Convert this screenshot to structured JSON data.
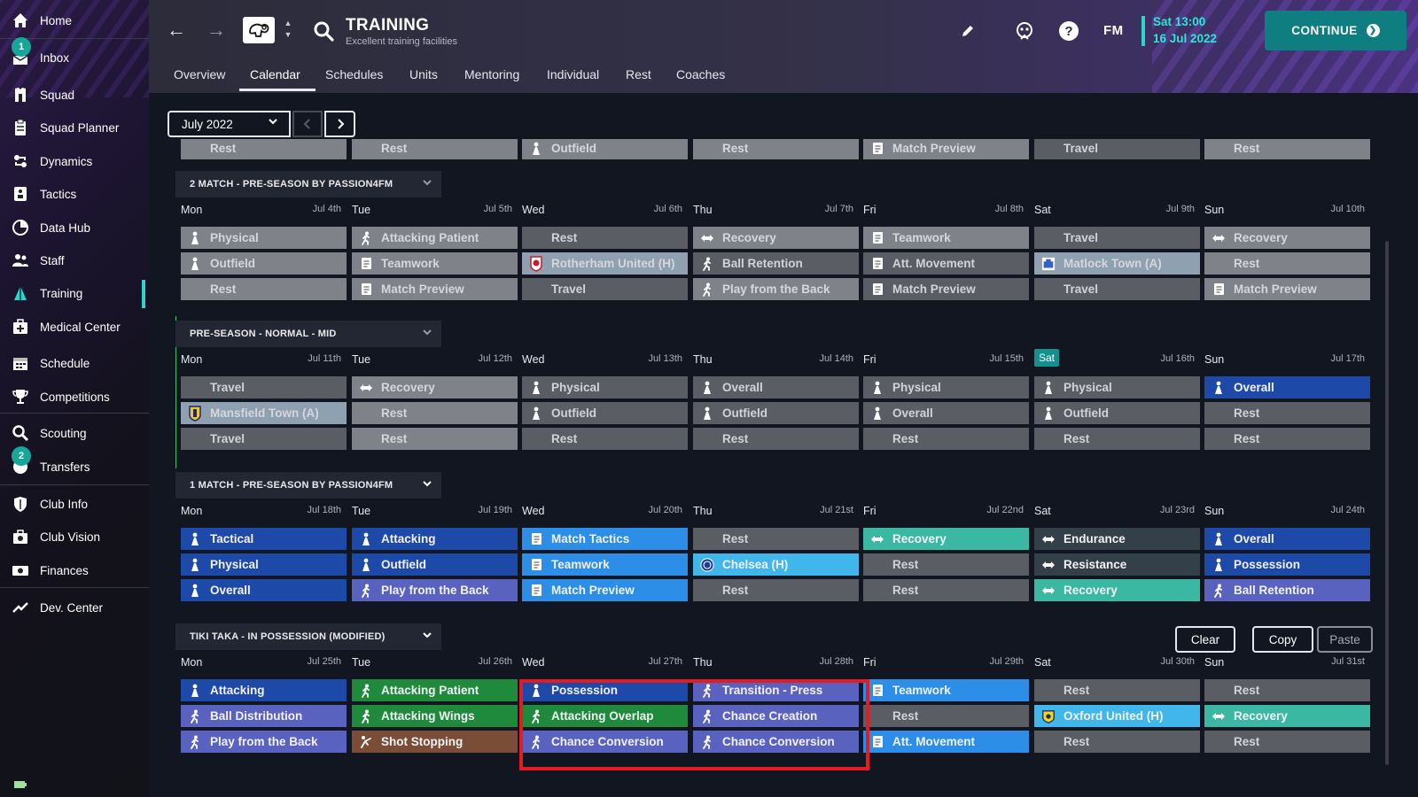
{
  "sidebar": {
    "items": [
      {
        "label": "Home",
        "icon": "home-icon"
      },
      {
        "label": "Inbox",
        "icon": "inbox-icon",
        "badge": "1"
      },
      {
        "label": "Squad",
        "icon": "squad-icon"
      },
      {
        "label": "Squad Planner",
        "icon": "clipboard-icon"
      },
      {
        "label": "Dynamics",
        "icon": "dynamics-icon"
      },
      {
        "label": "Tactics",
        "icon": "tactics-icon"
      },
      {
        "label": "Data Hub",
        "icon": "data-hub-icon"
      },
      {
        "label": "Staff",
        "icon": "staff-icon"
      },
      {
        "label": "Training",
        "icon": "training-icon",
        "active": true
      },
      {
        "label": "Medical Center",
        "icon": "medical-icon"
      },
      {
        "label": "Schedule",
        "icon": "calendar-icon"
      },
      {
        "label": "Competitions",
        "icon": "trophy-icon"
      },
      {
        "label": "Scouting",
        "icon": "scouting-icon"
      },
      {
        "label": "Transfers",
        "icon": "transfers-icon",
        "badge": "2"
      },
      {
        "label": "Club Info",
        "icon": "shield-icon"
      },
      {
        "label": "Club Vision",
        "icon": "club-vision-icon"
      },
      {
        "label": "Finances",
        "icon": "finances-icon"
      },
      {
        "label": "Dev. Center",
        "icon": "dev-center-icon"
      }
    ]
  },
  "header": {
    "title": "TRAINING",
    "subtitle": "Excellent training facilities",
    "fm_logo": "FM",
    "date_time": "Sat 13:00",
    "date_day": "16 Jul 2022",
    "continue_label": "CONTINUE",
    "tabs": [
      "Overview",
      "Calendar",
      "Schedules",
      "Units",
      "Mentoring",
      "Individual",
      "Rest",
      "Coaches"
    ],
    "active_tab": "Calendar"
  },
  "controls": {
    "month": "July 2022",
    "clear": "Clear",
    "copy": "Copy",
    "paste": "Paste"
  },
  "colors": {
    "grey": "#5b5d65",
    "lightgrey": "#80828a",
    "match": "#8fa0b0",
    "navy": "#1d49a8",
    "blue": "#2c8ee6",
    "lightblue": "#40b6ea",
    "purple": "#5a62c0",
    "green": "#1f8a3b",
    "brown": "#7a4e36",
    "teal": "#3ab8a2",
    "darkteal": "#33404a",
    "accent": "#2dd4c8",
    "highlight": "#e41b23"
  },
  "calendar": {
    "top_row": [
      {
        "label": "Rest",
        "color": "lightgrey",
        "icon": ""
      },
      {
        "label": "Rest",
        "color": "lightgrey",
        "icon": ""
      },
      {
        "label": "Outfield",
        "color": "lightgrey",
        "icon": "figure"
      },
      {
        "label": "Rest",
        "color": "lightgrey",
        "icon": ""
      },
      {
        "label": "Match Preview",
        "color": "lightgrey",
        "icon": "doc"
      },
      {
        "label": "Travel",
        "color": "grey",
        "icon": ""
      },
      {
        "label": "Rest",
        "color": "lightgrey",
        "icon": ""
      }
    ],
    "weeks": [
      {
        "title": "2 MATCH - PRE-SEASON BY PASSION4FM",
        "days": [
          {
            "day": "Mon",
            "date": "Jul 4th"
          },
          {
            "day": "Tue",
            "date": "Jul 5th"
          },
          {
            "day": "Wed",
            "date": "Jul 6th"
          },
          {
            "day": "Thu",
            "date": "Jul 7th"
          },
          {
            "day": "Fri",
            "date": "Jul 8th"
          },
          {
            "day": "Sat",
            "date": "Jul 9th"
          },
          {
            "day": "Sun",
            "date": "Jul 10th"
          }
        ],
        "rows": [
          [
            {
              "label": "Physical",
              "color": "lightgrey",
              "icon": "figure"
            },
            {
              "label": "Attacking Patient",
              "color": "lightgrey",
              "icon": "runner"
            },
            {
              "label": "Rest",
              "color": "grey",
              "icon": ""
            },
            {
              "label": "Recovery",
              "color": "lightgrey",
              "icon": "arrows"
            },
            {
              "label": "Teamwork",
              "color": "lightgrey",
              "icon": "doc"
            },
            {
              "label": "Travel",
              "color": "grey",
              "icon": ""
            },
            {
              "label": "Recovery",
              "color": "lightgrey",
              "icon": "arrows"
            }
          ],
          [
            {
              "label": "Outfield",
              "color": "lightgrey",
              "icon": "figure"
            },
            {
              "label": "Teamwork",
              "color": "lightgrey",
              "icon": "doc"
            },
            {
              "label": "Rotherham United (H)",
              "color": "match",
              "icon": "crest-red"
            },
            {
              "label": "Ball Retention",
              "color": "grey",
              "icon": "runner"
            },
            {
              "label": "Att. Movement",
              "color": "grey",
              "icon": "doc"
            },
            {
              "label": "Matlock Town (A)",
              "color": "match",
              "icon": "crest-blue"
            },
            {
              "label": "Rest",
              "color": "lightgrey",
              "icon": ""
            }
          ],
          [
            {
              "label": "Rest",
              "color": "lightgrey",
              "icon": ""
            },
            {
              "label": "Match Preview",
              "color": "lightgrey",
              "icon": "doc"
            },
            {
              "label": "Travel",
              "color": "grey",
              "icon": ""
            },
            {
              "label": "Play from the Back",
              "color": "lightgrey",
              "icon": "runner"
            },
            {
              "label": "Match Preview",
              "color": "grey",
              "icon": "doc"
            },
            {
              "label": "Travel",
              "color": "grey",
              "icon": ""
            },
            {
              "label": "Match Preview",
              "color": "lightgrey",
              "icon": "doc"
            }
          ]
        ]
      },
      {
        "title": "PRE-SEASON - NORMAL - MID",
        "days": [
          {
            "day": "Mon",
            "date": "Jul 11th"
          },
          {
            "day": "Tue",
            "date": "Jul 12th"
          },
          {
            "day": "Wed",
            "date": "Jul 13th"
          },
          {
            "day": "Thu",
            "date": "Jul 14th"
          },
          {
            "day": "Fri",
            "date": "Jul 15th"
          },
          {
            "day": "Sat",
            "date": "Jul 16th",
            "today": true
          },
          {
            "day": "Sun",
            "date": "Jul 17th"
          }
        ],
        "rows": [
          [
            {
              "label": "Travel",
              "color": "grey",
              "icon": ""
            },
            {
              "label": "Recovery",
              "color": "lightgrey",
              "icon": "arrows"
            },
            {
              "label": "Physical",
              "color": "grey",
              "icon": "figure"
            },
            {
              "label": "Overall",
              "color": "grey",
              "icon": "figure"
            },
            {
              "label": "Physical",
              "color": "grey",
              "icon": "figure"
            },
            {
              "label": "Physical",
              "color": "grey",
              "icon": "figure"
            },
            {
              "label": "Overall",
              "color": "navy",
              "icon": "figure"
            }
          ],
          [
            {
              "label": "Mansfield Town (A)",
              "color": "match",
              "icon": "crest-gold"
            },
            {
              "label": "Rest",
              "color": "lightgrey",
              "icon": ""
            },
            {
              "label": "Outfield",
              "color": "grey",
              "icon": "figure"
            },
            {
              "label": "Outfield",
              "color": "grey",
              "icon": "figure"
            },
            {
              "label": "Overall",
              "color": "grey",
              "icon": "figure"
            },
            {
              "label": "Outfield",
              "color": "grey",
              "icon": "figure"
            },
            {
              "label": "Rest",
              "color": "grey",
              "icon": ""
            }
          ],
          [
            {
              "label": "Travel",
              "color": "grey",
              "icon": ""
            },
            {
              "label": "Rest",
              "color": "lightgrey",
              "icon": ""
            },
            {
              "label": "Rest",
              "color": "grey",
              "icon": ""
            },
            {
              "label": "Rest",
              "color": "grey",
              "icon": ""
            },
            {
              "label": "Rest",
              "color": "grey",
              "icon": ""
            },
            {
              "label": "Rest",
              "color": "grey",
              "icon": ""
            },
            {
              "label": "Rest",
              "color": "grey",
              "icon": ""
            }
          ]
        ]
      },
      {
        "title": "1 MATCH - PRE-SEASON BY PASSION4FM",
        "days": [
          {
            "day": "Mon",
            "date": "Jul 18th"
          },
          {
            "day": "Tue",
            "date": "Jul 19th"
          },
          {
            "day": "Wed",
            "date": "Jul 20th"
          },
          {
            "day": "Thu",
            "date": "Jul 21st"
          },
          {
            "day": "Fri",
            "date": "Jul 22nd"
          },
          {
            "day": "Sat",
            "date": "Jul 23rd"
          },
          {
            "day": "Sun",
            "date": "Jul 24th"
          }
        ],
        "rows": [
          [
            {
              "label": "Tactical",
              "color": "navy",
              "icon": "figure"
            },
            {
              "label": "Attacking",
              "color": "navy",
              "icon": "figure"
            },
            {
              "label": "Match Tactics",
              "color": "blue",
              "icon": "doc"
            },
            {
              "label": "Rest",
              "color": "grey",
              "icon": ""
            },
            {
              "label": "Recovery",
              "color": "teal",
              "icon": "arrows"
            },
            {
              "label": "Endurance",
              "color": "darkteal",
              "icon": "arrows"
            },
            {
              "label": "Overall",
              "color": "navy",
              "icon": "figure"
            }
          ],
          [
            {
              "label": "Physical",
              "color": "navy",
              "icon": "figure"
            },
            {
              "label": "Outfield",
              "color": "navy",
              "icon": "figure"
            },
            {
              "label": "Teamwork",
              "color": "blue",
              "icon": "doc"
            },
            {
              "label": "Chelsea (H)",
              "color": "lightblue",
              "icon": "crest-chelsea"
            },
            {
              "label": "Rest",
              "color": "grey",
              "icon": ""
            },
            {
              "label": "Resistance",
              "color": "darkteal",
              "icon": "arrows"
            },
            {
              "label": "Possession",
              "color": "navy",
              "icon": "figure"
            }
          ],
          [
            {
              "label": "Overall",
              "color": "navy",
              "icon": "figure"
            },
            {
              "label": "Play from the Back",
              "color": "purple",
              "icon": "runner"
            },
            {
              "label": "Match Preview",
              "color": "blue",
              "icon": "doc"
            },
            {
              "label": "Rest",
              "color": "grey",
              "icon": ""
            },
            {
              "label": "Rest",
              "color": "grey",
              "icon": ""
            },
            {
              "label": "Recovery",
              "color": "teal",
              "icon": "arrows"
            },
            {
              "label": "Ball Retention",
              "color": "purple",
              "icon": "runner"
            }
          ]
        ]
      },
      {
        "title": "TIKI TAKA - IN POSSESSION (MODIFIED)",
        "days": [
          {
            "day": "Mon",
            "date": "Jul 25th"
          },
          {
            "day": "Tue",
            "date": "Jul 26th"
          },
          {
            "day": "Wed",
            "date": "Jul 27th"
          },
          {
            "day": "Thu",
            "date": "Jul 28th"
          },
          {
            "day": "Fri",
            "date": "Jul 29th"
          },
          {
            "day": "Sat",
            "date": "Jul 30th"
          },
          {
            "day": "Sun",
            "date": "Jul 31st"
          }
        ],
        "rows": [
          [
            {
              "label": "Attacking",
              "color": "navy",
              "icon": "figure"
            },
            {
              "label": "Attacking Patient",
              "color": "green",
              "icon": "runner"
            },
            {
              "label": "Possession",
              "color": "navy",
              "icon": "figure"
            },
            {
              "label": "Transition - Press",
              "color": "purple",
              "icon": "runner"
            },
            {
              "label": "Teamwork",
              "color": "blue",
              "icon": "doc"
            },
            {
              "label": "Rest",
              "color": "grey",
              "icon": ""
            },
            {
              "label": "Rest",
              "color": "grey",
              "icon": ""
            }
          ],
          [
            {
              "label": "Ball Distribution",
              "color": "purple",
              "icon": "runner"
            },
            {
              "label": "Attacking Wings",
              "color": "green",
              "icon": "runner"
            },
            {
              "label": "Attacking Overlap",
              "color": "green",
              "icon": "runner"
            },
            {
              "label": "Chance Creation",
              "color": "purple",
              "icon": "runner"
            },
            {
              "label": "Rest",
              "color": "grey",
              "icon": ""
            },
            {
              "label": "Oxford United (H)",
              "color": "lightblue",
              "icon": "crest-oxford"
            },
            {
              "label": "Recovery",
              "color": "teal",
              "icon": "arrows"
            }
          ],
          [
            {
              "label": "Play from the Back",
              "color": "purple",
              "icon": "runner"
            },
            {
              "label": "Shot Stopping",
              "color": "brown",
              "icon": "keeper"
            },
            {
              "label": "Chance Conversion",
              "color": "purple",
              "icon": "runner"
            },
            {
              "label": "Chance Conversion",
              "color": "purple",
              "icon": "runner"
            },
            {
              "label": "Att. Movement",
              "color": "blue",
              "icon": "doc"
            },
            {
              "label": "Rest",
              "color": "grey",
              "icon": ""
            },
            {
              "label": "Rest",
              "color": "grey",
              "icon": ""
            }
          ]
        ]
      }
    ]
  }
}
